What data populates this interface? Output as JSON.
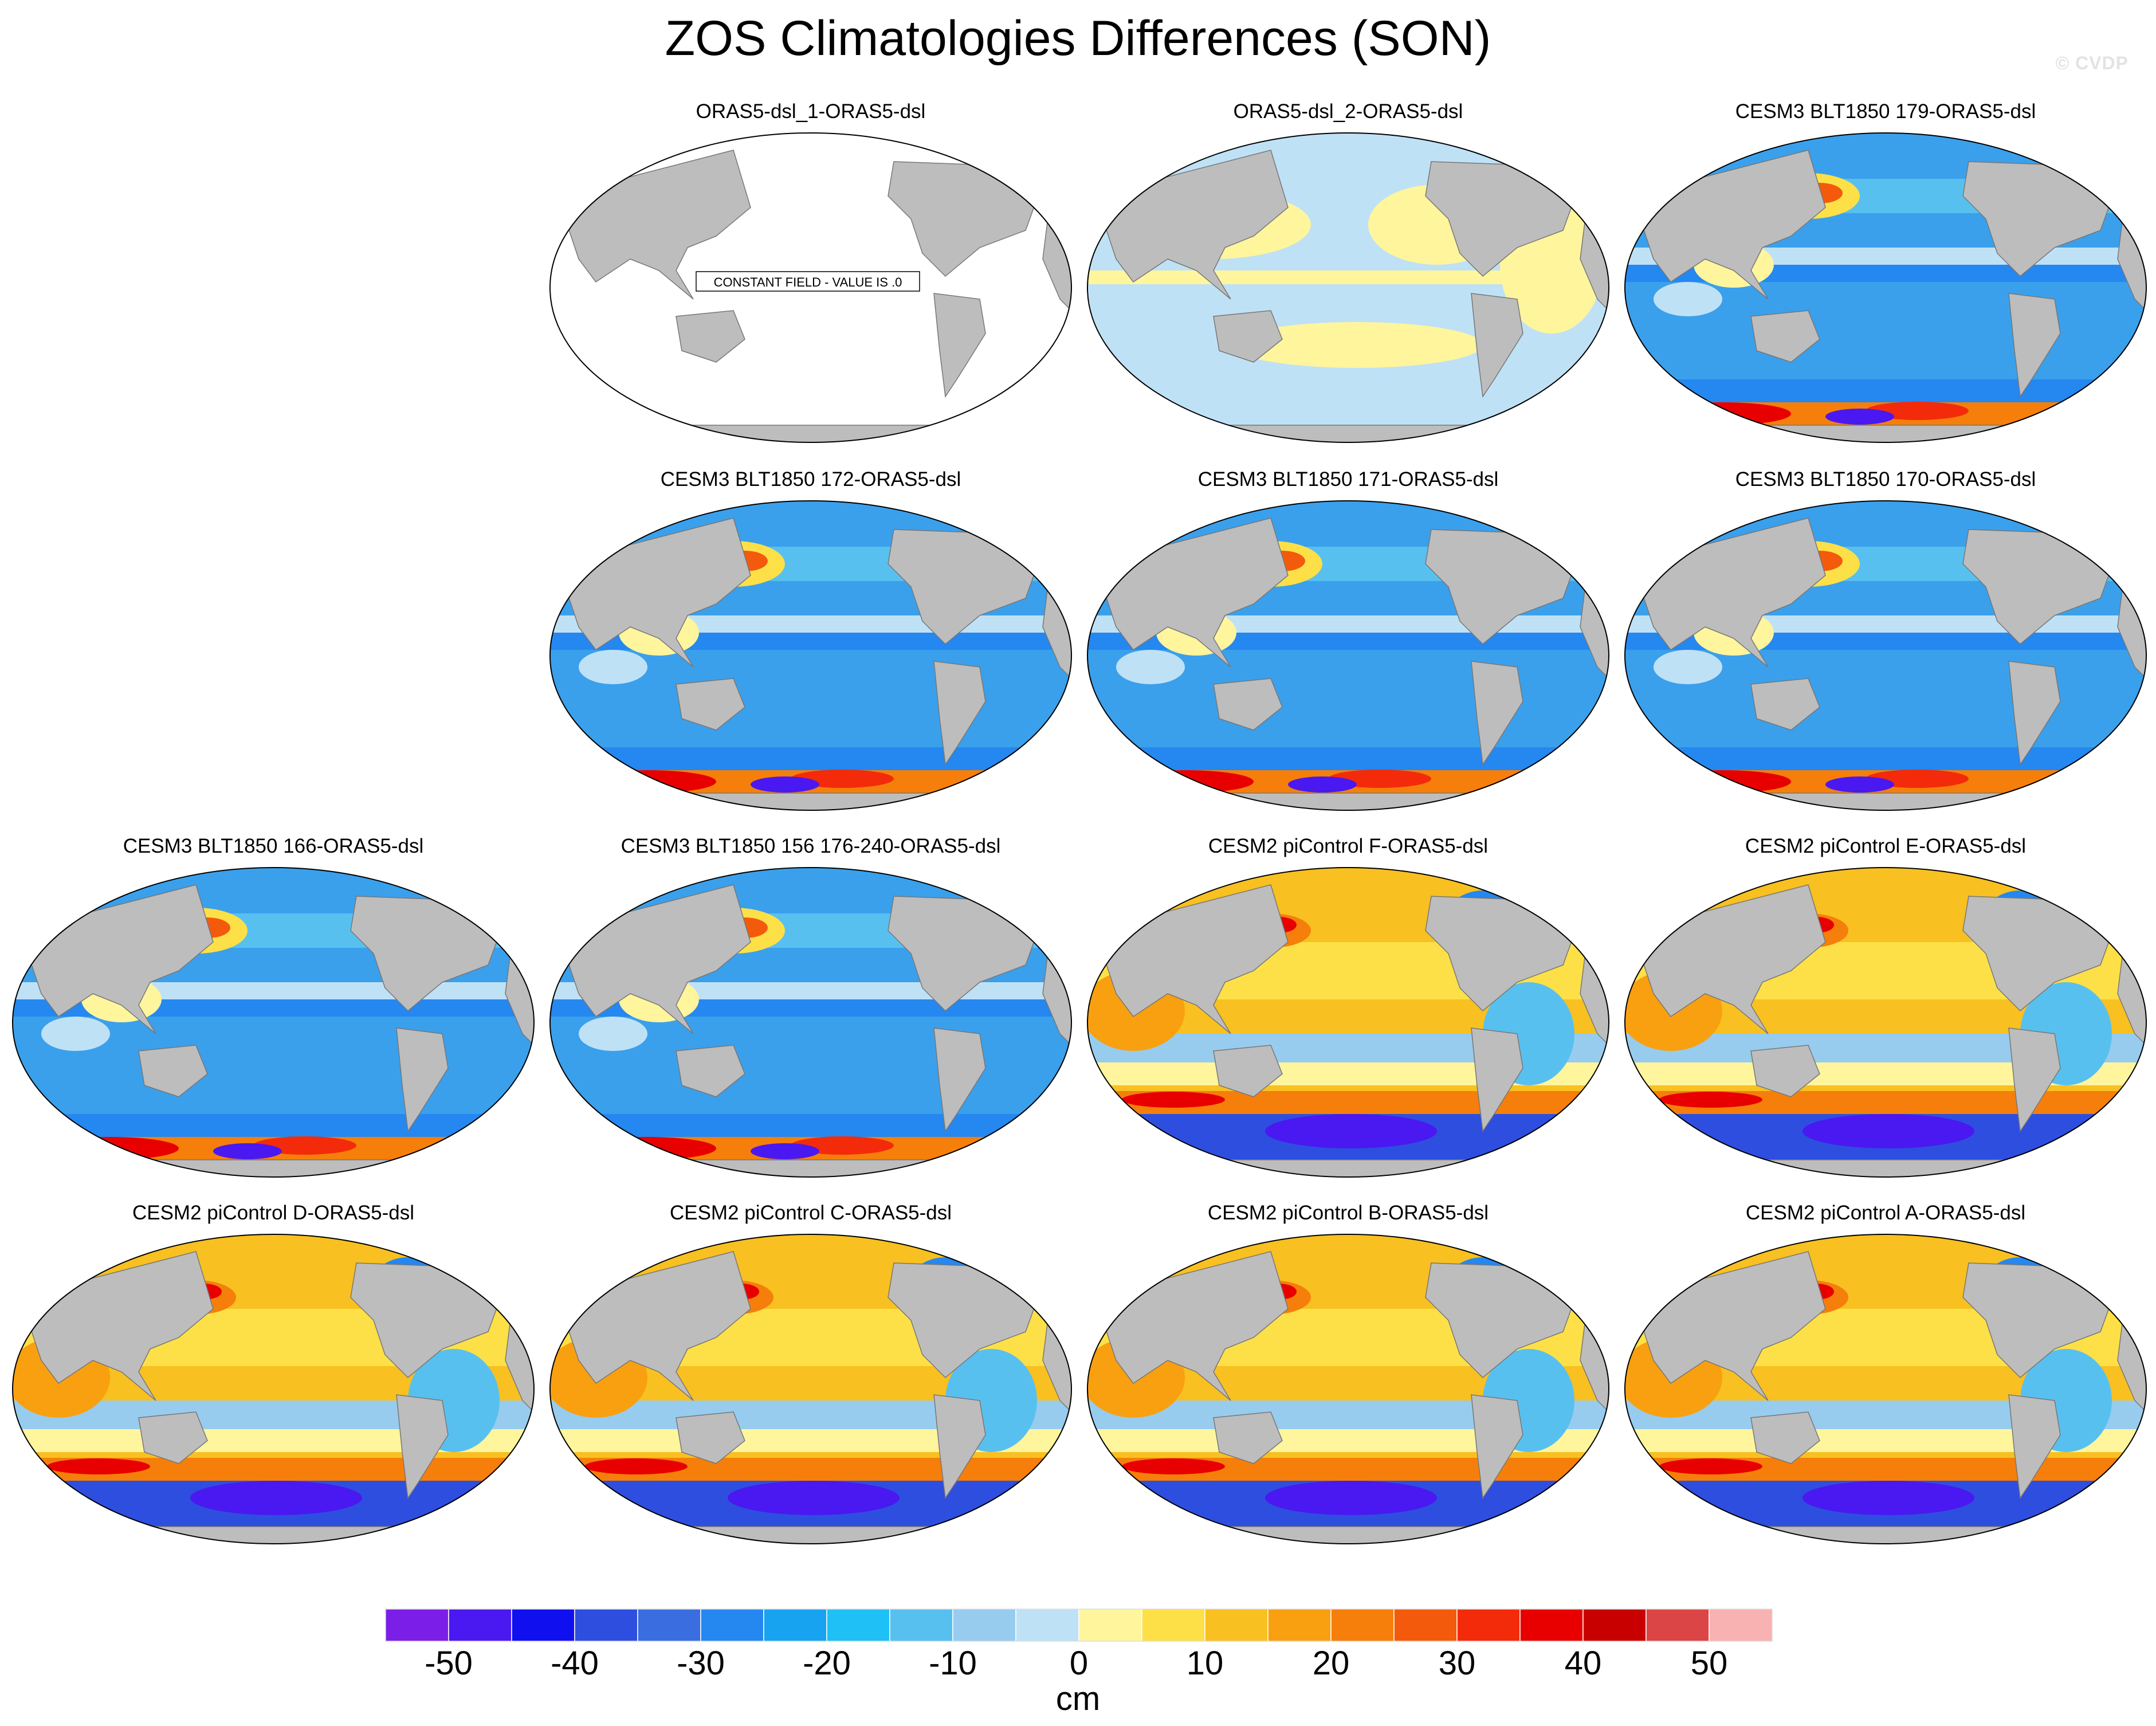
{
  "title": "ZOS Climatologies Differences (SON)",
  "credit": "© CVDP",
  "panels": [
    {
      "title": "ORAS5-dsl_1-ORAS5-dsl",
      "pattern": "constant",
      "note": "CONSTANT FIELD - VALUE IS .0"
    },
    {
      "title": "ORAS5-dsl_2-ORAS5-dsl",
      "pattern": "near-zero"
    },
    {
      "title": "CESM3 BLT1850 179-ORAS5-dsl",
      "pattern": "cesm3"
    },
    {
      "title": "CESM3 BLT1850 172-ORAS5-dsl",
      "pattern": "cesm3"
    },
    {
      "title": "CESM3 BLT1850 171-ORAS5-dsl",
      "pattern": "cesm3"
    },
    {
      "title": "CESM3 BLT1850 170-ORAS5-dsl",
      "pattern": "cesm3"
    },
    {
      "title": "CESM3 BLT1850 166-ORAS5-dsl",
      "pattern": "cesm3"
    },
    {
      "title": "CESM3 BLT1850 156 176-240-ORAS5-dsl",
      "pattern": "cesm3"
    },
    {
      "title": "CESM2 piControl F-ORAS5-dsl",
      "pattern": "cesm2"
    },
    {
      "title": "CESM2 piControl E-ORAS5-dsl",
      "pattern": "cesm2"
    },
    {
      "title": "CESM2 piControl D-ORAS5-dsl",
      "pattern": "cesm2"
    },
    {
      "title": "CESM2 piControl C-ORAS5-dsl",
      "pattern": "cesm2"
    },
    {
      "title": "CESM2 piControl B-ORAS5-dsl",
      "pattern": "cesm2"
    },
    {
      "title": "CESM2 piControl A-ORAS5-dsl",
      "pattern": "cesm2"
    }
  ],
  "colorbar": {
    "units": "cm",
    "colors": [
      "#7b1fe8",
      "#4a18f0",
      "#0f0ff0",
      "#2e4ee0",
      "#3a6de0",
      "#2587f0",
      "#17a3f0",
      "#1ec0f5",
      "#58c0ef",
      "#97ccee",
      "#bfe1f6",
      "#fff59d",
      "#fde047",
      "#f8c020",
      "#f8a010",
      "#f57f0a",
      "#f35a0c",
      "#f32b0b",
      "#e80000",
      "#c80000",
      "#db4545",
      "#f9b2b2"
    ],
    "boundaries": [
      -55,
      -50,
      -45,
      -40,
      -35,
      -30,
      -25,
      -20,
      -15,
      -10,
      -5,
      0,
      5,
      10,
      15,
      20,
      25,
      30,
      35,
      40,
      45,
      50,
      55
    ],
    "tick_labels": [
      "-50",
      "-40",
      "-30",
      "-20",
      "-10",
      "0",
      "10",
      "20",
      "30",
      "40",
      "50"
    ],
    "tick_values": [
      -50,
      -40,
      -30,
      -20,
      -10,
      0,
      10,
      20,
      30,
      40,
      50
    ]
  }
}
